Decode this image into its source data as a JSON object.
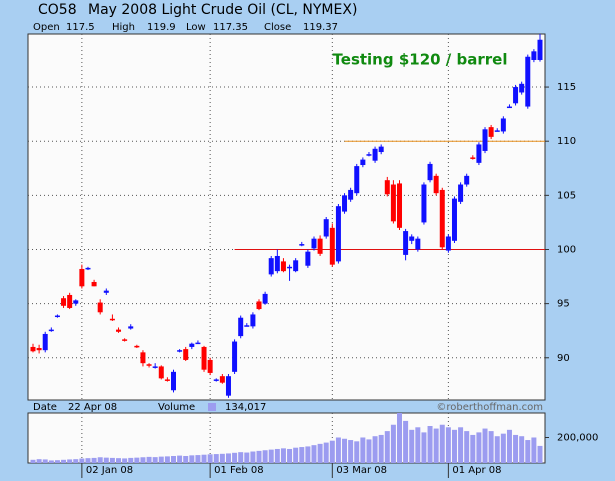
{
  "header": {
    "symbol": "CO58",
    "title": "May 2008 Light Crude Oil (CL, NYMEX)",
    "open_label": "Open",
    "open": 117.5,
    "high_label": "High",
    "high": 119.9,
    "low_label": "Low",
    "low": 117.35,
    "close_label": "Close",
    "close": 119.37,
    "date_label": "Date",
    "date": "22 Apr 08",
    "volume_label": "Volume",
    "volume": {
      "value": 134017,
      "label": "134,017"
    },
    "credit": "©roberthoffman.com"
  },
  "chart_data": [
    {
      "type": "candlestick",
      "annotation": "Testing $120 / barrel",
      "up_color": "#1010ff",
      "down_color": "#ff0000",
      "grid": true,
      "categories": [
        null,
        null,
        null,
        null,
        null,
        null,
        null,
        null,
        "02 Jan 08",
        null,
        null,
        null,
        null,
        null,
        null,
        null,
        null,
        null,
        null,
        null,
        null,
        null,
        null,
        null,
        null,
        null,
        null,
        null,
        null,
        "01 Feb 08",
        null,
        null,
        null,
        null,
        null,
        null,
        null,
        null,
        null,
        null,
        null,
        null,
        null,
        null,
        null,
        null,
        null,
        null,
        null,
        "03 Mar 08",
        null,
        null,
        null,
        null,
        null,
        null,
        null,
        null,
        null,
        null,
        null,
        null,
        null,
        null,
        null,
        null,
        null,
        null,
        "01 Apr 08",
        null,
        null,
        null,
        null,
        null,
        null,
        null,
        null,
        null,
        null,
        null,
        null,
        null,
        null,
        null
      ],
      "open": [
        91.0,
        90.9,
        90.7,
        92.5,
        93.8,
        95.5,
        95.8,
        95.0,
        98.2,
        98.2,
        97.0,
        95.1,
        96.0,
        93.6,
        92.6,
        91.7,
        92.7,
        91.1,
        90.5,
        89.4,
        89.1,
        89.2,
        88.0,
        87.0,
        90.6,
        90.8,
        91.0,
        91.4,
        91.0,
        89.8,
        87.9,
        88.3,
        86.5,
        88.7,
        92.0,
        93.0,
        92.9,
        95.2,
        95.0,
        97.7,
        98.0,
        98.9,
        98.3,
        98.0,
        100.5,
        98.5,
        100.1,
        101.0,
        101.2,
        102.0,
        98.9,
        103.5,
        104.6,
        105.2,
        107.8,
        108.8,
        108.2,
        109.0,
        106.4,
        106.0,
        106.1,
        99.5,
        100.8,
        100.0,
        102.5,
        106.4,
        106.8,
        105.5,
        99.9,
        100.8,
        104.4,
        106.0,
        108.5,
        108.0,
        109.1,
        111.3,
        111.0,
        110.9,
        113.2,
        113.5,
        114.5,
        113.2,
        117.5,
        117.5
      ],
      "high": [
        91.3,
        91.2,
        92.4,
        92.8,
        94.0,
        95.7,
        96.0,
        95.4,
        98.6,
        98.4,
        97.2,
        95.4,
        96.4,
        94.0,
        92.8,
        91.8,
        93.1,
        91.2,
        90.7,
        89.5,
        89.5,
        89.3,
        88.2,
        88.9,
        90.8,
        91.0,
        91.4,
        91.6,
        91.1,
        90.0,
        88.1,
        88.5,
        88.5,
        91.7,
        93.9,
        93.2,
        94.2,
        95.4,
        96.1,
        99.4,
        100.0,
        99.2,
        98.6,
        99.2,
        100.7,
        100.0,
        101.2,
        101.3,
        103.0,
        102.4,
        104.2,
        105.2,
        105.7,
        107.9,
        108.5,
        109.0,
        109.5,
        109.7,
        106.7,
        106.4,
        106.4,
        101.9,
        101.4,
        101.2,
        106.2,
        108.1,
        107.0,
        105.7,
        101.4,
        104.9,
        106.2,
        107.0,
        108.7,
        109.9,
        111.3,
        111.5,
        111.2,
        112.3,
        113.4,
        115.2,
        115.5,
        118.0,
        118.5,
        119.9
      ],
      "low": [
        90.5,
        90.4,
        90.5,
        92.4,
        93.7,
        94.6,
        94.5,
        94.8,
        96.4,
        98.1,
        96.6,
        94.0,
        95.8,
        93.4,
        92.3,
        91.5,
        92.6,
        90.9,
        89.2,
        89.1,
        89.0,
        88.0,
        87.8,
        86.8,
        90.5,
        89.7,
        90.8,
        91.3,
        88.7,
        88.4,
        87.8,
        87.6,
        86.3,
        88.5,
        91.8,
        92.9,
        92.7,
        94.4,
        94.9,
        97.5,
        97.8,
        97.9,
        97.1,
        97.9,
        100.3,
        98.3,
        99.9,
        99.4,
        101.0,
        98.4,
        98.7,
        103.3,
        104.4,
        105.0,
        107.6,
        108.6,
        108.0,
        108.8,
        104.9,
        102.4,
        101.8,
        99.0,
        100.5,
        99.8,
        102.3,
        106.2,
        105.0,
        100.0,
        99.7,
        100.6,
        104.2,
        105.8,
        108.3,
        107.8,
        108.9,
        110.2,
        110.9,
        110.7,
        113.1,
        113.3,
        114.3,
        113.0,
        117.3,
        117.35
      ],
      "close": [
        90.6,
        90.7,
        92.2,
        92.6,
        93.9,
        94.8,
        94.6,
        95.3,
        96.6,
        98.3,
        96.6,
        94.2,
        96.2,
        93.5,
        92.4,
        91.6,
        92.9,
        91.0,
        89.5,
        89.3,
        89.2,
        88.1,
        87.9,
        88.7,
        90.7,
        89.8,
        91.3,
        91.4,
        88.9,
        88.6,
        88.0,
        87.7,
        88.3,
        91.5,
        93.7,
        93.0,
        94.0,
        94.5,
        95.9,
        99.2,
        99.4,
        98.0,
        98.4,
        99.0,
        100.5,
        99.8,
        101.0,
        99.6,
        102.8,
        98.6,
        104.0,
        105.0,
        105.5,
        107.7,
        108.3,
        108.8,
        109.3,
        109.5,
        105.1,
        102.6,
        102.0,
        101.7,
        101.2,
        101.0,
        106.0,
        107.9,
        105.2,
        100.2,
        101.2,
        104.7,
        106.0,
        106.8,
        108.4,
        109.7,
        111.1,
        110.4,
        111.0,
        112.1,
        113.2,
        115.0,
        115.3,
        117.8,
        118.3,
        119.37
      ],
      "ylim": [
        86.1,
        119.9
      ],
      "yticks": [
        90,
        95,
        100,
        105,
        110,
        115
      ],
      "lines": [
        {
          "value": 110,
          "color": "#e8901c",
          "start": 51
        },
        {
          "value": 100,
          "color": "#e01010",
          "start": 33
        }
      ]
    },
    {
      "type": "bar",
      "color": "#9c9cf0",
      "values": [
        25000,
        30000,
        28000,
        20000,
        22000,
        25000,
        28000,
        30000,
        35000,
        38000,
        40000,
        45000,
        42000,
        40000,
        38000,
        36000,
        40000,
        42000,
        45000,
        48000,
        46000,
        50000,
        52000,
        55000,
        58000,
        55000,
        60000,
        62000,
        65000,
        68000,
        70000,
        72000,
        75000,
        80000,
        85000,
        82000,
        90000,
        95000,
        100000,
        105000,
        110000,
        115000,
        110000,
        120000,
        125000,
        130000,
        140000,
        150000,
        160000,
        175000,
        200000,
        190000,
        180000,
        170000,
        200000,
        185000,
        210000,
        220000,
        250000,
        300000,
        392000,
        330000,
        260000,
        280000,
        240000,
        290000,
        270000,
        300000,
        280000,
        260000,
        280000,
        250000,
        220000,
        240000,
        270000,
        250000,
        210000,
        230000,
        260000,
        220000,
        210000,
        180000,
        200000,
        134017
      ],
      "ylim": [
        0,
        392000
      ],
      "yticks": [
        {
          "value": 200000,
          "label": "200,000"
        }
      ]
    }
  ]
}
